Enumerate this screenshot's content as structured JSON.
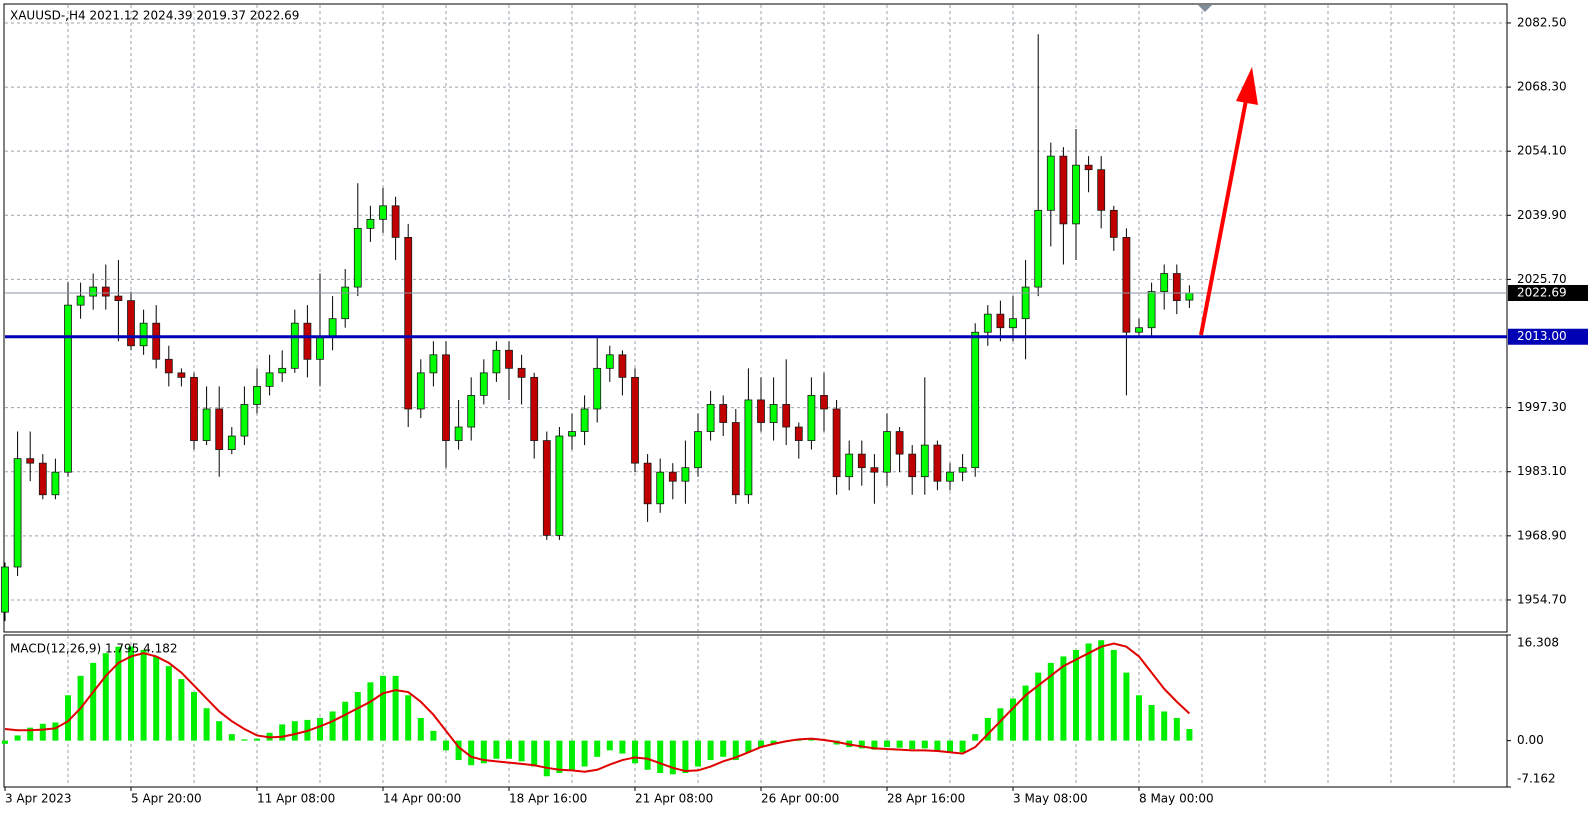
{
  "chart_data": [
    {
      "type": "candlestick",
      "title": "XAUUSD-,H4  2021.12 2024.39 2019.37 2022.69",
      "categories": [
        "3 Apr 2023",
        null,
        null,
        null,
        null,
        null,
        null,
        null,
        null,
        null,
        "5 Apr 20:00",
        null,
        null,
        null,
        null,
        null,
        null,
        null,
        null,
        null,
        "11 Apr 08:00",
        null,
        null,
        null,
        null,
        null,
        null,
        null,
        null,
        null,
        "14 Apr 00:00",
        null,
        null,
        null,
        null,
        null,
        null,
        null,
        null,
        null,
        "18 Apr 16:00",
        null,
        null,
        null,
        null,
        null,
        null,
        null,
        null,
        null,
        "21 Apr 08:00",
        null,
        null,
        null,
        null,
        null,
        null,
        null,
        null,
        null,
        "26 Apr 00:00",
        null,
        null,
        null,
        null,
        null,
        null,
        null,
        null,
        null,
        "28 Apr 16:00",
        null,
        null,
        null,
        null,
        null,
        null,
        null,
        null,
        null,
        "3 May 08:00",
        null,
        null,
        null,
        null,
        null,
        null,
        null,
        null,
        null,
        "8 May 00:00",
        null,
        null,
        null,
        null
      ],
      "open": [
        1952,
        1962,
        1986,
        1985,
        1978,
        1983,
        2020,
        2022,
        2024,
        2022,
        2021,
        2011,
        2016,
        2008,
        2005,
        2004,
        1990,
        1997,
        1988,
        1991,
        1998,
        2002,
        2005,
        2006,
        2016,
        2008,
        2013,
        2017,
        2024,
        2037,
        2039,
        2042,
        2035,
        1997,
        2005,
        2009,
        1990,
        1993,
        2000,
        2005,
        2010,
        2006,
        2004,
        1990,
        1969,
        1991,
        1992,
        1997,
        2006,
        2009,
        2004,
        1985,
        1976,
        1983,
        1981,
        1984,
        1992,
        1998,
        1994,
        1978,
        1999,
        1994,
        1998,
        1993,
        1990,
        2000,
        1997,
        1982,
        1987,
        1984,
        1983,
        1992,
        1987,
        1982,
        1989,
        1981,
        1983,
        1984,
        2014,
        2018,
        2015,
        2017,
        2024,
        2041,
        2053,
        2038,
        2051,
        2050,
        2041,
        2035,
        2014,
        2015,
        2023,
        2027,
        2021.12
      ],
      "high": [
        1963,
        1992,
        1992,
        1987,
        1986,
        2025,
        2025,
        2027,
        2029,
        2030,
        2023,
        2019,
        2020,
        2011,
        2006,
        2005,
        2002,
        2002,
        1993,
        2002,
        2006,
        2009,
        2010,
        2019,
        2020,
        2027,
        2022,
        2028,
        2047,
        2042,
        2046,
        2044,
        2038,
        2008,
        2012,
        2012,
        1999,
        2004,
        2008,
        2012,
        2012,
        2009,
        2005,
        1992,
        1993,
        1996,
        2000,
        2013,
        2011,
        2010,
        2006,
        1987,
        1986,
        1985,
        1990,
        1996,
        2001,
        2000,
        1997,
        2006,
        2004,
        2004,
        2008,
        1994,
        2004,
        2005,
        1999,
        1990,
        1990,
        1987,
        1996,
        1993,
        1989,
        2004,
        1990,
        1985,
        1987,
        2016,
        2020,
        2021,
        2022,
        2030,
        2080,
        2056,
        2055,
        2059,
        2053,
        2053,
        2042,
        2037,
        2017,
        2025,
        2029,
        2029,
        2024.39
      ],
      "low": [
        1950,
        1960,
        1981,
        1977,
        1977,
        1982,
        2017,
        2019,
        2019,
        2012,
        2010,
        2009,
        2006,
        2002,
        2002,
        1988,
        1989,
        1982,
        1987,
        1989,
        1996,
        2000,
        2003,
        2005,
        2004,
        2002,
        2010,
        2015,
        2022,
        2034,
        2036,
        2030,
        1993,
        1995,
        2002,
        1984,
        1988,
        1990,
        1998,
        2003,
        1999,
        1998,
        1986,
        1968,
        1968,
        1988,
        1989,
        1994,
        2003,
        2000,
        1983,
        1972,
        1974,
        1977,
        1976,
        1982,
        1990,
        1991,
        1976,
        1976,
        1992,
        1990,
        1989,
        1986,
        1988,
        1992,
        1978,
        1979,
        1980,
        1976,
        1980,
        1983,
        1978,
        1978,
        1979,
        1979,
        1981,
        1982,
        2011,
        2012,
        2012,
        2008,
        2022,
        2033,
        2029,
        2030,
        2045,
        2037,
        2032,
        2000,
        2013,
        2013,
        2019,
        2018,
        2019.37
      ],
      "close": [
        1962,
        1986,
        1985,
        1978,
        1983,
        2020,
        2022,
        2024,
        2022,
        2021,
        2011,
        2016,
        2008,
        2005,
        2004,
        1990,
        1997,
        1988,
        1991,
        1998,
        2002,
        2005,
        2006,
        2016,
        2008,
        2013,
        2017,
        2024,
        2037,
        2039,
        2042,
        2035,
        1997,
        2005,
        2009,
        1990,
        1993,
        2000,
        2005,
        2010,
        2006,
        2004,
        1990,
        1969,
        1991,
        1992,
        1997,
        2006,
        2009,
        2004,
        1985,
        1976,
        1983,
        1981,
        1984,
        1992,
        1998,
        1994,
        1978,
        1999,
        1994,
        1998,
        1993,
        1990,
        2000,
        1997,
        1982,
        1987,
        1984,
        1983,
        1992,
        1987,
        1982,
        1989,
        1981,
        1983,
        1984,
        2014,
        2018,
        2015,
        2017,
        2024,
        2041,
        2053,
        2038,
        2051,
        2050,
        2041,
        2035,
        2014,
        2015,
        2023,
        2027,
        2021,
        2022.69
      ],
      "up_color": "#00ff00",
      "down_color": "#c00000",
      "ylim": [
        1947.6,
        2086.7
      ],
      "yticks": [
        {
          "value": 2082.5,
          "label": "2082.50"
        },
        {
          "value": 2068.3,
          "label": "2068.30"
        },
        {
          "value": 2054.1,
          "label": "2054.10"
        },
        {
          "value": 2039.9,
          "label": "2039.90"
        },
        {
          "value": 2025.7,
          "label": "2025.70"
        },
        {
          "value": 1997.3,
          "label": "1997.30"
        },
        {
          "value": 1983.1,
          "label": "1983.10"
        },
        {
          "value": 1968.9,
          "label": "1968.90"
        },
        {
          "value": 1954.7,
          "label": "1954.70"
        }
      ],
      "hlines": [
        {
          "value": 2022.69,
          "label": "2022.69",
          "color": "#000000"
        },
        {
          "value": 2013,
          "label": "2013.00",
          "color": "#0000b4"
        }
      ],
      "grid": true
    },
    {
      "type": "macd",
      "title": "MACD(12,26,9) 1.795 4.182",
      "series": [
        {
          "kind": "bar",
          "color": "#00ee00",
          "values": [
            -0.5,
            0.8,
            2.0,
            2.6,
            2.8,
            7,
            10,
            12,
            13.5,
            14.5,
            14.5,
            14,
            13,
            11.5,
            9.5,
            7.5,
            5,
            3,
            1,
            0.2,
            0.3,
            1.2,
            2.5,
            3,
            3.2,
            3.5,
            4.5,
            6,
            7.5,
            9,
            10,
            10,
            7,
            3.5,
            1.5,
            -1.5,
            -3,
            -3.8,
            -3.5,
            -2.8,
            -2.8,
            -3.2,
            -4,
            -5.5,
            -5,
            -4.5,
            -4,
            -2.5,
            -1.5,
            -2,
            -3.5,
            -4.5,
            -5,
            -5.2,
            -5,
            -4,
            -3,
            -2.5,
            -3,
            -1.8,
            -1,
            -0.5,
            -0.2,
            0,
            0.3,
            0.2,
            -0.6,
            -1,
            -1.2,
            -1.4,
            -1,
            -1.1,
            -1.3,
            -1.2,
            -1.6,
            -1.8,
            -1.8,
            1,
            3.5,
            5,
            6.5,
            8.5,
            10.5,
            12,
            13,
            14,
            15,
            15.5,
            14,
            10.5,
            7,
            5.5,
            4.5,
            3.5,
            1.795
          ]
        },
        {
          "kind": "line",
          "color": "#e00000",
          "values": [
            1.8,
            1.6,
            1.6,
            1.7,
            1.9,
            3,
            5,
            7.5,
            10,
            12,
            13,
            13.5,
            13,
            12,
            10.5,
            8.5,
            6.5,
            4.5,
            3,
            1.8,
            0.8,
            0.5,
            0.6,
            1,
            1.5,
            2.2,
            3,
            4,
            5,
            6,
            7.3,
            7.8,
            7.5,
            6,
            4,
            1.5,
            -1,
            -2.5,
            -3,
            -3.2,
            -3.4,
            -3.6,
            -3.8,
            -4.2,
            -4.5,
            -4.6,
            -4.8,
            -4.5,
            -3.7,
            -3,
            -2.6,
            -2.8,
            -3.5,
            -4.2,
            -4.7,
            -4.6,
            -4,
            -3.2,
            -2.6,
            -1.8,
            -1,
            -0.5,
            -0.1,
            0.2,
            0.3,
            0.1,
            -0.2,
            -0.6,
            -0.9,
            -1.2,
            -1.3,
            -1.4,
            -1.5,
            -1.5,
            -1.6,
            -1.8,
            -2,
            -1,
            1,
            3,
            5,
            7,
            8.5,
            10,
            11.5,
            12.5,
            13.5,
            14.5,
            15,
            14.5,
            13,
            10.5,
            8,
            6,
            4.182
          ]
        }
      ],
      "ylim": [
        -7.162,
        16.308
      ],
      "yticks": [
        {
          "value": 16.308,
          "label": "16.308"
        },
        {
          "value": 0,
          "label": "0.00"
        },
        {
          "value": -7.162,
          "label": "-7.162"
        }
      ],
      "grid": true
    }
  ]
}
